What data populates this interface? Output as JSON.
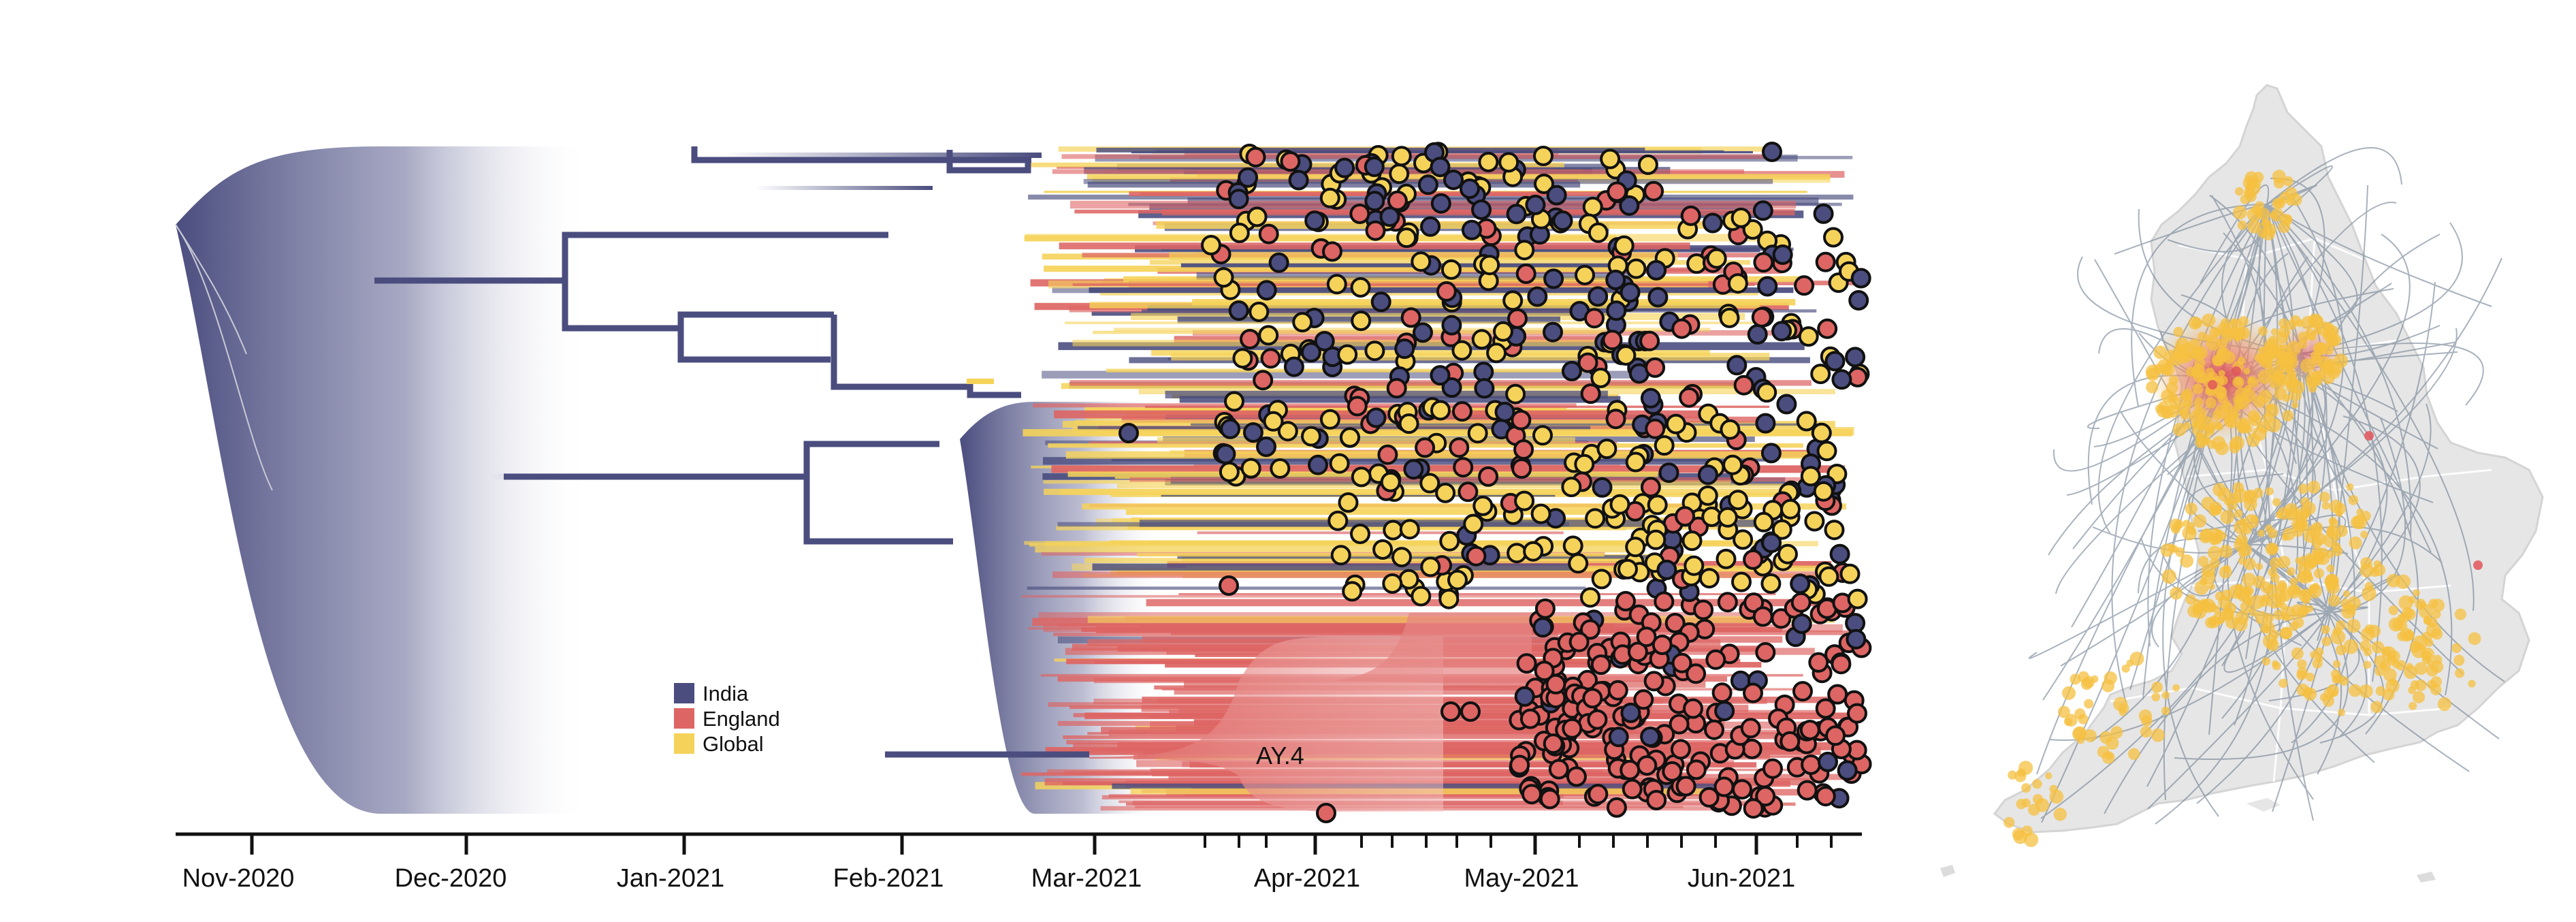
{
  "figure": {
    "tree": {
      "axis_ticks": [
        "Nov-2020",
        "Dec-2020",
        "Jan-2021",
        "Feb-2021",
        "Mar-2021",
        "Apr-2021",
        "May-2021",
        "Jun-2021"
      ],
      "clade_label": "AY.4",
      "legend": [
        {
          "label": "India",
          "color": "#4a4d7e"
        },
        {
          "label": "England",
          "color": "#dd6563"
        },
        {
          "label": "Global",
          "color": "#f5d35a"
        }
      ]
    },
    "map": {
      "region": "England",
      "land_color": "#e6e6e6",
      "arc_color": "#6f7f92",
      "point_color": "#f5c040",
      "hotspot_color": "#e0565a"
    }
  },
  "colors": {
    "india": "#4a4d7e",
    "england": "#dd6563",
    "global": "#f5d35a",
    "tip_outline": "#111111"
  }
}
